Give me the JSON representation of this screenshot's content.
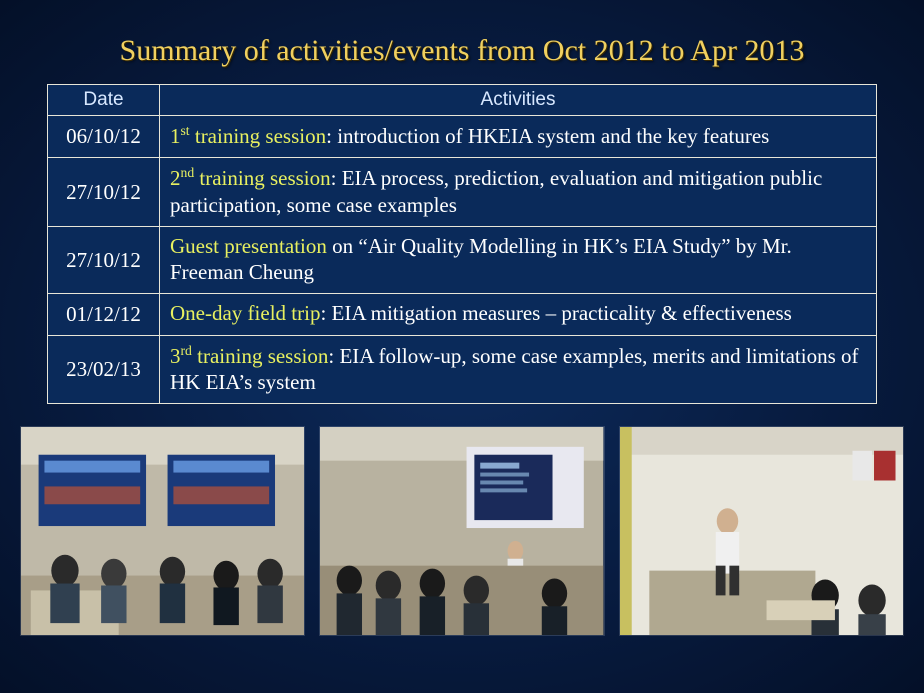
{
  "title": "Summary of activities/events from Oct 2012 to Apr 2013",
  "headers": {
    "date": "Date",
    "activities": "Activities"
  },
  "rows": [
    {
      "date": "06/10/12",
      "highlight_pre": "1",
      "highlight_sup": "st",
      "highlight_post": " training session",
      "rest": ": introduction of HKEIA system and the key features"
    },
    {
      "date": "27/10/12",
      "highlight_pre": "2",
      "highlight_sup": "nd",
      "highlight_post": " training session",
      "rest": ": EIA process, prediction, evaluation and mitigation public participation, some case examples"
    },
    {
      "date": "27/10/12",
      "highlight_pre": "",
      "highlight_sup": "",
      "highlight_post": "Guest presentation",
      "rest": " on “Air Quality Modelling in HK’s EIA Study” by Mr. Freeman Cheung"
    },
    {
      "date": "01/12/12",
      "highlight_pre": "",
      "highlight_sup": "",
      "highlight_post": "One-day field trip",
      "rest": ": EIA mitigation measures – practicality & effectiveness"
    },
    {
      "date": "23/02/13",
      "highlight_pre": "3",
      "highlight_sup": "rd",
      "highlight_post": "  training session",
      "rest": ": EIA follow-up, some case examples, merits and limitations of HK EIA’s system"
    }
  ],
  "colors": {
    "title": "#f0d060",
    "highlight": "#e8f060",
    "text": "#ffffff",
    "border": "#e8e6d8",
    "table_bg": "#0a2a5a"
  }
}
